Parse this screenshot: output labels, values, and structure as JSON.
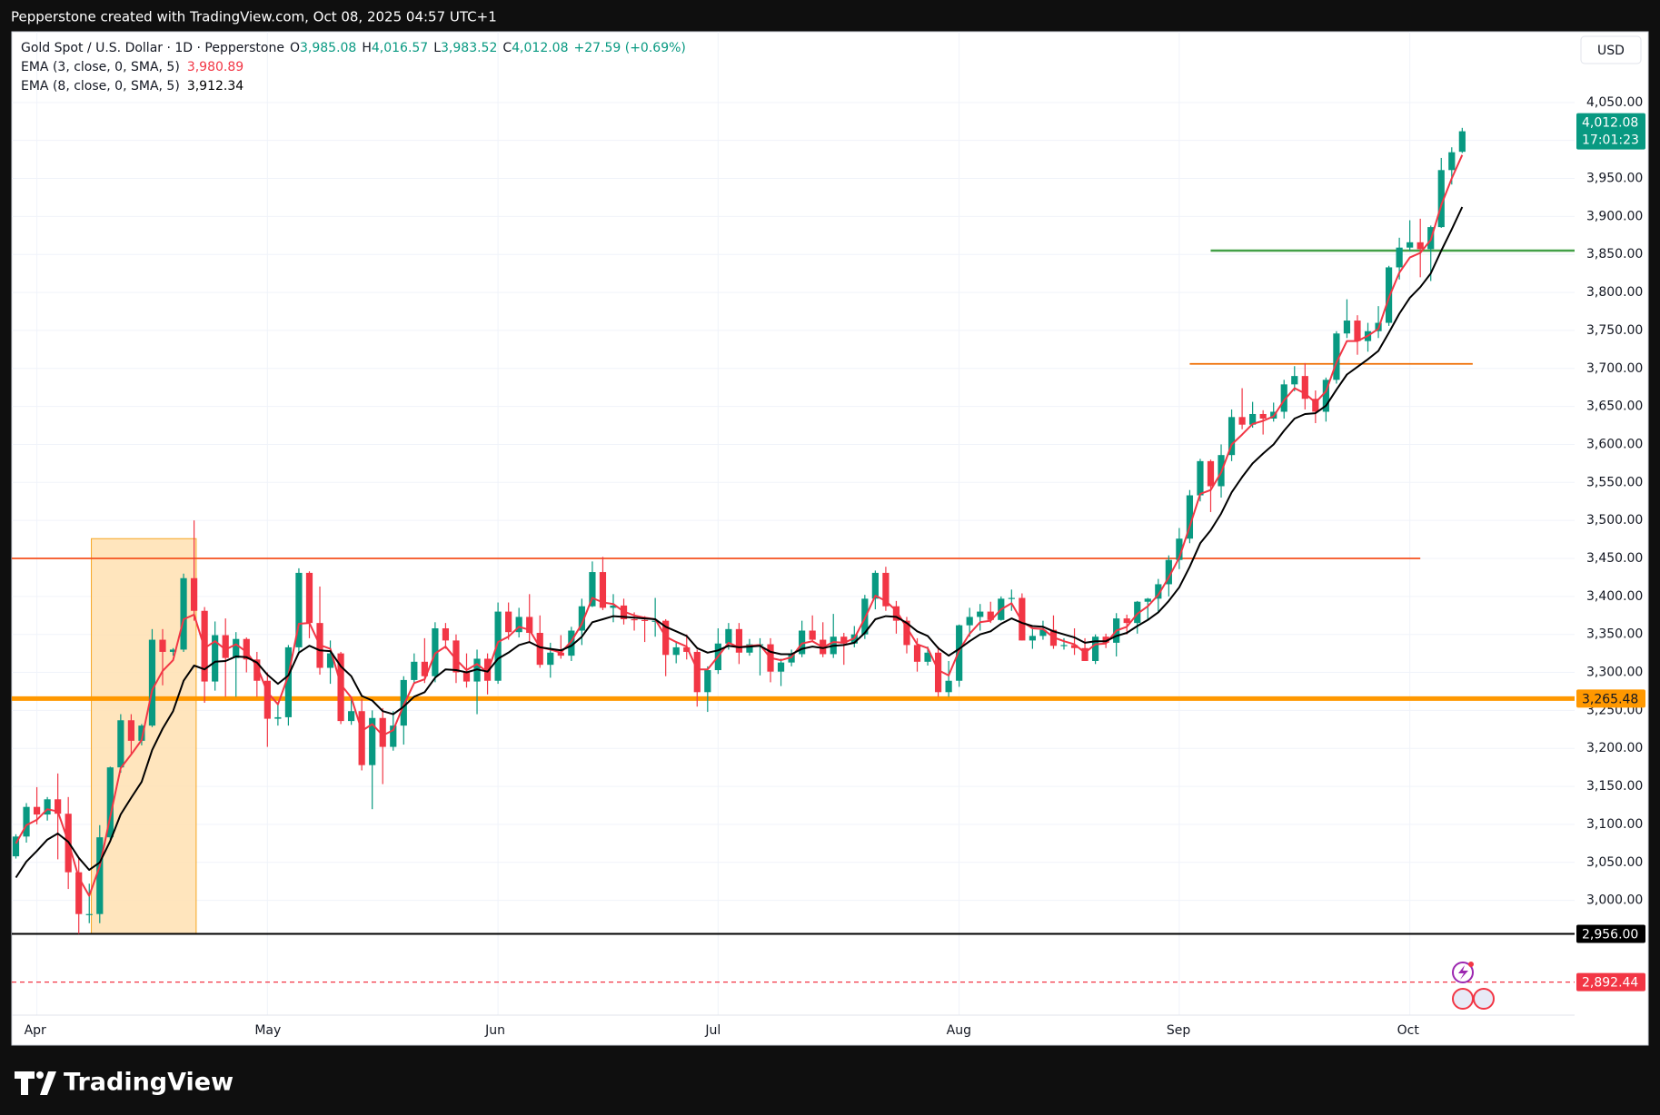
{
  "top_bar": {
    "text": "Pepperstone created with TradingView.com, Oct 08, 2025 04:57 UTC+1"
  },
  "footer": {
    "logo": "TradingView"
  },
  "chart_data": {
    "type": "candlestick",
    "title": "Gold Spot / U.S. Dollar · 1D · Pepperstone",
    "ohlc_header": [
      {
        "key": "O",
        "value": "3,985.08"
      },
      {
        "key": "H",
        "value": "4,016.57"
      },
      {
        "key": "L",
        "value": "3,983.52"
      },
      {
        "key": "C",
        "value": "4,012.08"
      }
    ],
    "change": "+27.59 (+0.69%)",
    "currency": "USD",
    "up_color": "#089981",
    "down_color": "#f23645",
    "grid": true,
    "categories": [
      null,
      null,
      "Apr",
      null,
      null,
      null,
      null,
      null,
      null,
      null,
      null,
      null,
      null,
      null,
      null,
      null,
      null,
      null,
      null,
      null,
      null,
      null,
      null,
      null,
      "May",
      null,
      null,
      null,
      null,
      null,
      null,
      null,
      null,
      null,
      null,
      null,
      null,
      null,
      null,
      null,
      null,
      null,
      null,
      null,
      null,
      null,
      "Jun",
      null,
      null,
      null,
      null,
      null,
      null,
      null,
      null,
      null,
      null,
      null,
      null,
      null,
      null,
      null,
      null,
      null,
      null,
      null,
      null,
      "Jul",
      null,
      null,
      null,
      null,
      null,
      null,
      null,
      null,
      null,
      null,
      null,
      null,
      null,
      null,
      null,
      null,
      null,
      null,
      null,
      null,
      null,
      null,
      "Aug",
      null,
      null,
      null,
      null,
      null,
      null,
      null,
      null,
      null,
      null,
      null,
      null,
      null,
      null,
      null,
      null,
      null,
      null,
      null,
      null,
      "Sep",
      null,
      null,
      null,
      null,
      null,
      null,
      null,
      null,
      null,
      null,
      null,
      null,
      null,
      null,
      null,
      null,
      null,
      null,
      null,
      null,
      null,
      "Oct",
      null,
      null,
      null,
      null,
      null
    ],
    "ohlc": [
      [
        3058,
        3087,
        3055,
        3084
      ],
      [
        3084,
        3128,
        3076,
        3123
      ],
      [
        3123,
        3149,
        3100,
        3113
      ],
      [
        3113,
        3136,
        3105,
        3133
      ],
      [
        3133,
        3167,
        3054,
        3114
      ],
      [
        3114,
        3136,
        3015,
        3037
      ],
      [
        3037,
        3055,
        2956,
        2982
      ],
      [
        2982,
        3022,
        2970,
        2982
      ],
      [
        2982,
        3099,
        2970,
        3083
      ],
      [
        3083,
        3176,
        3080,
        3175
      ],
      [
        3175,
        3245,
        3168,
        3237
      ],
      [
        3237,
        3245,
        3193,
        3210
      ],
      [
        3210,
        3232,
        3204,
        3230
      ],
      [
        3230,
        3357,
        3228,
        3343
      ],
      [
        3343,
        3357,
        3283,
        3327
      ],
      [
        3327,
        3332,
        3322,
        3330
      ],
      [
        3330,
        3430,
        3327,
        3424
      ],
      [
        3424,
        3500,
        3368,
        3381
      ],
      [
        3381,
        3386,
        3260,
        3288
      ],
      [
        3288,
        3367,
        3276,
        3349
      ],
      [
        3349,
        3371,
        3268,
        3319
      ],
      [
        3319,
        3353,
        3268,
        3344
      ],
      [
        3344,
        3346,
        3300,
        3317
      ],
      [
        3317,
        3327,
        3268,
        3289
      ],
      [
        3289,
        3300,
        3202,
        3239
      ],
      [
        3239,
        3260,
        3230,
        3241
      ],
      [
        3241,
        3336,
        3230,
        3333
      ],
      [
        3333,
        3437,
        3324,
        3431
      ],
      [
        3431,
        3433,
        3345,
        3365
      ],
      [
        3365,
        3413,
        3297,
        3306
      ],
      [
        3306,
        3342,
        3285,
        3325
      ],
      [
        3325,
        3327,
        3232,
        3236
      ],
      [
        3236,
        3266,
        3231,
        3249
      ],
      [
        3249,
        3265,
        3171,
        3178
      ],
      [
        3178,
        3250,
        3120,
        3240
      ],
      [
        3240,
        3253,
        3153,
        3202
      ],
      [
        3202,
        3249,
        3197,
        3230
      ],
      [
        3230,
        3295,
        3205,
        3290
      ],
      [
        3290,
        3325,
        3285,
        3314
      ],
      [
        3314,
        3345,
        3286,
        3295
      ],
      [
        3295,
        3366,
        3287,
        3358
      ],
      [
        3358,
        3365,
        3331,
        3342
      ],
      [
        3342,
        3350,
        3286,
        3300
      ],
      [
        3300,
        3325,
        3280,
        3288
      ],
      [
        3288,
        3330,
        3245,
        3318
      ],
      [
        3318,
        3325,
        3271,
        3289
      ],
      [
        3289,
        3392,
        3285,
        3380
      ],
      [
        3380,
        3392,
        3343,
        3353
      ],
      [
        3353,
        3385,
        3346,
        3373
      ],
      [
        3373,
        3403,
        3340,
        3352
      ],
      [
        3352,
        3375,
        3306,
        3310
      ],
      [
        3310,
        3339,
        3293,
        3326
      ],
      [
        3326,
        3349,
        3318,
        3322
      ],
      [
        3322,
        3360,
        3315,
        3355
      ],
      [
        3355,
        3397,
        3336,
        3387
      ],
      [
        3387,
        3446,
        3386,
        3432
      ],
      [
        3432,
        3452,
        3382,
        3385
      ],
      [
        3385,
        3403,
        3366,
        3388
      ],
      [
        3388,
        3397,
        3363,
        3370
      ],
      [
        3370,
        3379,
        3355,
        3369
      ],
      [
        3369,
        3374,
        3340,
        3368
      ],
      [
        3368,
        3398,
        3347,
        3368
      ],
      [
        3368,
        3370,
        3295,
        3323
      ],
      [
        3323,
        3340,
        3312,
        3333
      ],
      [
        3333,
        3350,
        3317,
        3327
      ],
      [
        3327,
        3330,
        3255,
        3274
      ],
      [
        3274,
        3308,
        3248,
        3303
      ],
      [
        3303,
        3358,
        3298,
        3338
      ],
      [
        3338,
        3365,
        3330,
        3357
      ],
      [
        3357,
        3365,
        3311,
        3326
      ],
      [
        3326,
        3344,
        3322,
        3337
      ],
      [
        3337,
        3345,
        3296,
        3337
      ],
      [
        3337,
        3345,
        3287,
        3301
      ],
      [
        3301,
        3318,
        3282,
        3313
      ],
      [
        3313,
        3330,
        3308,
        3324
      ],
      [
        3324,
        3368,
        3320,
        3355
      ],
      [
        3355,
        3375,
        3340,
        3343
      ],
      [
        3343,
        3366,
        3320,
        3324
      ],
      [
        3324,
        3377,
        3319,
        3347
      ],
      [
        3347,
        3352,
        3310,
        3338
      ],
      [
        3338,
        3361,
        3333,
        3350
      ],
      [
        3350,
        3402,
        3344,
        3397
      ],
      [
        3397,
        3434,
        3383,
        3431
      ],
      [
        3431,
        3439,
        3381,
        3387
      ],
      [
        3387,
        3394,
        3351,
        3368
      ],
      [
        3368,
        3373,
        3325,
        3336
      ],
      [
        3336,
        3345,
        3301,
        3314
      ],
      [
        3314,
        3334,
        3309,
        3326
      ],
      [
        3326,
        3334,
        3268,
        3274
      ],
      [
        3274,
        3315,
        3268,
        3289
      ],
      [
        3289,
        3363,
        3281,
        3362
      ],
      [
        3362,
        3385,
        3347,
        3373
      ],
      [
        3373,
        3390,
        3355,
        3380
      ],
      [
        3380,
        3393,
        3365,
        3369
      ],
      [
        3369,
        3400,
        3368,
        3397
      ],
      [
        3397,
        3409,
        3381,
        3398
      ],
      [
        3398,
        3404,
        3342,
        3342
      ],
      [
        3342,
        3357,
        3331,
        3348
      ],
      [
        3348,
        3368,
        3343,
        3356
      ],
      [
        3356,
        3375,
        3331,
        3335
      ],
      [
        3335,
        3345,
        3330,
        3336
      ],
      [
        3336,
        3358,
        3323,
        3332
      ],
      [
        3332,
        3345,
        3315,
        3315
      ],
      [
        3315,
        3350,
        3311,
        3347
      ],
      [
        3347,
        3351,
        3332,
        3339
      ],
      [
        3339,
        3378,
        3321,
        3371
      ],
      [
        3371,
        3376,
        3350,
        3365
      ],
      [
        3365,
        3394,
        3351,
        3393
      ],
      [
        3393,
        3398,
        3370,
        3397
      ],
      [
        3397,
        3423,
        3379,
        3416
      ],
      [
        3416,
        3454,
        3400,
        3448
      ],
      [
        3448,
        3490,
        3436,
        3476
      ],
      [
        3476,
        3540,
        3470,
        3533
      ],
      [
        3533,
        3581,
        3525,
        3578
      ],
      [
        3578,
        3580,
        3511,
        3545
      ],
      [
        3545,
        3600,
        3530,
        3586
      ],
      [
        3586,
        3646,
        3578,
        3636
      ],
      [
        3636,
        3674,
        3620,
        3626
      ],
      [
        3626,
        3656,
        3622,
        3640
      ],
      [
        3640,
        3645,
        3613,
        3634
      ],
      [
        3634,
        3655,
        3630,
        3643
      ],
      [
        3643,
        3685,
        3634,
        3679
      ],
      [
        3679,
        3703,
        3670,
        3690
      ],
      [
        3690,
        3707,
        3646,
        3660
      ],
      [
        3660,
        3671,
        3628,
        3643
      ],
      [
        3643,
        3688,
        3630,
        3685
      ],
      [
        3685,
        3749,
        3680,
        3746
      ],
      [
        3746,
        3791,
        3740,
        3763
      ],
      [
        3763,
        3770,
        3718,
        3736
      ],
      [
        3736,
        3760,
        3722,
        3749
      ],
      [
        3749,
        3782,
        3740,
        3760
      ],
      [
        3760,
        3835,
        3756,
        3833
      ],
      [
        3833,
        3872,
        3817,
        3859
      ],
      [
        3859,
        3895,
        3855,
        3866
      ],
      [
        3866,
        3897,
        3820,
        3857
      ],
      [
        3857,
        3888,
        3815,
        3886
      ],
      [
        3886,
        3977,
        3885,
        3961
      ],
      [
        3961,
        3991,
        3942,
        3984.49
      ],
      [
        3985.08,
        4016.57,
        3983.52,
        4012.08
      ]
    ],
    "series": [
      {
        "name": "EMA (3, close, 0, SMA, 5)",
        "color": "#f23645",
        "last_label": "3,980.89",
        "values": [
          3075,
          3099,
          3106,
          3120,
          3117,
          3077,
          3030,
          3006,
          3045,
          3110,
          3174,
          3192,
          3211,
          3277,
          3302,
          3316,
          3370,
          3376,
          3332,
          3341,
          3330,
          3337,
          3327,
          3308,
          3274,
          3258,
          3296,
          3364,
          3365,
          3336,
          3331,
          3284,
          3267,
          3223,
          3232,
          3217,
          3224,
          3257,
          3286,
          3291,
          3325,
          3334,
          3317,
          3303,
          3311,
          3300,
          3340,
          3347,
          3360,
          3356,
          3333,
          3330,
          3326,
          3341,
          3364,
          3398,
          3392,
          3390,
          3380,
          3375,
          3372,
          3370,
          3347,
          3340,
          3334,
          3304,
          3304,
          3321,
          3339,
          3333,
          3335,
          3336,
          3319,
          3316,
          3320,
          3338,
          3341,
          3333,
          3340,
          3339,
          3345,
          3371,
          3401,
          3394,
          3381,
          3359,
          3337,
          3332,
          3303,
          3296,
          3329,
          3351,
          3366,
          3368,
          3383,
          3391,
          3367,
          3358,
          3357,
          3346,
          3341,
          3337,
          3326,
          3337,
          3338,
          3355,
          3360,
          3377,
          3387,
          3402,
          3425,
          3451,
          3492,
          3535,
          3540,
          3563,
          3600,
          3613,
          3627,
          3631,
          3637,
          3658,
          3674,
          3667,
          3655,
          3670,
          3708,
          3736,
          3736,
          3743,
          3752,
          3793,
          3826,
          3846,
          3852,
          3869,
          3915,
          3950,
          3980.89
        ]
      },
      {
        "name": "EMA (8, close, 0, SMA, 5)",
        "color": "#000000",
        "last_label": "3,912.34",
        "values": [
          3030,
          3051,
          3065,
          3080,
          3088,
          3077,
          3056,
          3040,
          3050,
          3078,
          3113,
          3135,
          3156,
          3198,
          3226,
          3249,
          3289,
          3309,
          3304,
          3314,
          3315,
          3321,
          3320,
          3313,
          3297,
          3285,
          3296,
          3326,
          3335,
          3329,
          3328,
          3308,
          3295,
          3269,
          3263,
          3249,
          3245,
          3255,
          3268,
          3274,
          3293,
          3304,
          3303,
          3300,
          3304,
          3301,
          3318,
          3326,
          3336,
          3340,
          3333,
          3331,
          3329,
          3335,
          3347,
          3366,
          3370,
          3374,
          3373,
          3372,
          3371,
          3370,
          3360,
          3354,
          3348,
          3332,
          3326,
          3329,
          3335,
          3333,
          3334,
          3335,
          3327,
          3324,
          3324,
          3331,
          3334,
          3332,
          3335,
          3336,
          3339,
          3352,
          3370,
          3374,
          3373,
          3365,
          3354,
          3348,
          3332,
          3322,
          3331,
          3341,
          3350,
          3354,
          3364,
          3371,
          3365,
          3361,
          3360,
          3354,
          3350,
          3346,
          3339,
          3341,
          3341,
          3348,
          3352,
          3361,
          3369,
          3379,
          3394,
          3412,
          3439,
          3470,
          3487,
          3509,
          3537,
          3557,
          3575,
          3588,
          3600,
          3618,
          3634,
          3640,
          3641,
          3651,
          3672,
          3692,
          3702,
          3712,
          3723,
          3747,
          3772,
          3793,
          3807,
          3825,
          3855,
          3883,
          3912.34
        ]
      }
    ],
    "ylim": [
      2849,
      4143
    ],
    "yticks": [
      {
        "value": 3000,
        "label": "3,000.00"
      },
      {
        "value": 3050,
        "label": "3,050.00"
      },
      {
        "value": 3100,
        "label": "3,100.00"
      },
      {
        "value": 3150,
        "label": "3,150.00"
      },
      {
        "value": 3200,
        "label": "3,200.00"
      },
      {
        "value": 3250,
        "label": "3,250.00"
      },
      {
        "value": 3300,
        "label": "3,300.00"
      },
      {
        "value": 3350,
        "label": "3,350.00"
      },
      {
        "value": 3400,
        "label": "3,400.00"
      },
      {
        "value": 3450,
        "label": "3,450.00"
      },
      {
        "value": 3500,
        "label": "3,500.00"
      },
      {
        "value": 3550,
        "label": "3,550.00"
      },
      {
        "value": 3600,
        "label": "3,600.00"
      },
      {
        "value": 3650,
        "label": "3,650.00"
      },
      {
        "value": 3700,
        "label": "3,700.00"
      },
      {
        "value": 3750,
        "label": "3,750.00"
      },
      {
        "value": 3800,
        "label": "3,800.00"
      },
      {
        "value": 3850,
        "label": "3,850.00"
      },
      {
        "value": 3900,
        "label": "3,900.00"
      },
      {
        "value": 3950,
        "label": "3,950.00"
      },
      {
        "value": 4000,
        "label": "4,000.00"
      },
      {
        "value": 4050,
        "label": "4,050.00"
      }
    ],
    "zone": {
      "start": 7.2,
      "end": 17.2,
      "low": 2956,
      "high": 3476,
      "color": "#ffe0b2",
      "border_color": "#f5a623"
    },
    "levels": [
      {
        "value": 3855,
        "color": "#43a047",
        "width": 2.5,
        "start": 114
      },
      {
        "value": 3706,
        "color": "#ef6c00",
        "width": 1.8,
        "start": 112,
        "end": 139
      },
      {
        "value": 3450,
        "color": "#f4511e",
        "width": 1.8,
        "start": -0.4,
        "end": 134
      }
    ],
    "price_lines": [
      {
        "value": 3265.48,
        "label": "3,265.48",
        "color": "#ff9800",
        "text_color": "#131722",
        "width": 5
      },
      {
        "value": 2956,
        "label": "2,956.00",
        "color": "#000000",
        "text_color": "#ffffff",
        "width": 2
      },
      {
        "value": 2892.44,
        "label": "2,892.44",
        "color": "#f23645",
        "text_color": "#ffffff",
        "width": 1.2,
        "dashed": true
      }
    ],
    "last_price": {
      "value": 4012.08,
      "label": "4,012.08",
      "countdown": "17:01:23",
      "color": "#089981"
    }
  }
}
